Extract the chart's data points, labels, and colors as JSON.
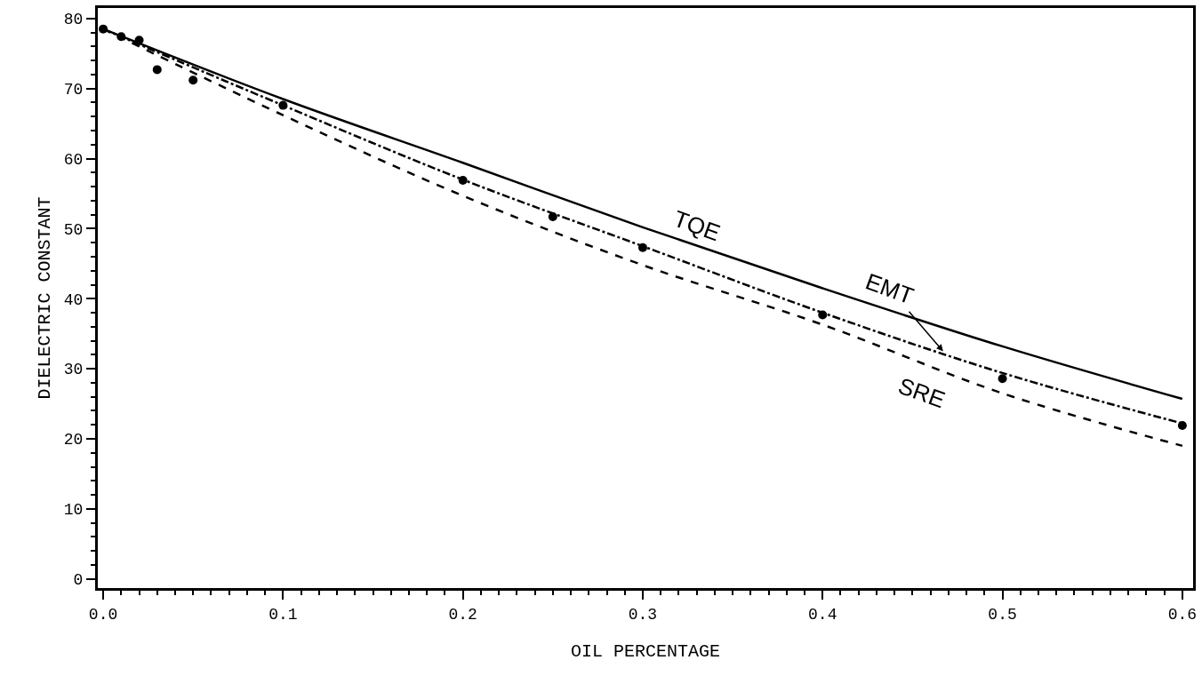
{
  "chart_data": {
    "type": "line",
    "xlabel": "OIL PERCENTAGE",
    "ylabel": "DIELECTRIC CONSTANT",
    "xlim": [
      -0.003,
      0.606
    ],
    "ylim": [
      -1.3,
      81.5
    ],
    "xticks": [
      {
        "value": 0,
        "label": "0.0"
      },
      0.1,
      0.2,
      0.3,
      0.4,
      0.5,
      0.6
    ],
    "yticks": [
      0,
      10,
      20,
      30,
      40,
      50,
      60,
      70,
      80
    ],
    "series": [
      {
        "color": "#000000",
        "line_style": "solid",
        "marker": "none",
        "x": [
          0,
          0.1,
          0.2,
          0.3,
          0.4,
          0.5,
          0.6
        ],
        "values": [
          78.5,
          68.5,
          59.4,
          50.2,
          41.5,
          33.2,
          25.7
        ]
      },
      {
        "color": "#000000",
        "line_style": "dashdot",
        "marker": "none",
        "x": [
          0,
          0.1,
          0.2,
          0.3,
          0.4,
          0.5,
          0.6
        ],
        "values": [
          78.5,
          67.6,
          57.0,
          47.5,
          38.0,
          29.4,
          22.2
        ]
      },
      {
        "color": "#000000",
        "line_style": "dashed",
        "marker": "none",
        "x": [
          0,
          0.1,
          0.2,
          0.3,
          0.4,
          0.5,
          0.6
        ],
        "values": [
          78.5,
          66.2,
          54.7,
          44.8,
          36.3,
          26.5,
          19.0
        ]
      },
      {
        "type": "scatter",
        "color": "#000000",
        "marker": "circle",
        "x": [
          0,
          0.01,
          0.02,
          0.03,
          0.05,
          0.1,
          0.2,
          0.25,
          0.3,
          0.4,
          0.5,
          0.6
        ],
        "values": [
          78.5,
          77.4,
          76.9,
          72.7,
          71.2,
          67.6,
          56.9,
          51.7,
          47.3,
          37.7,
          28.6,
          21.9
        ]
      }
    ],
    "annotations": [
      {
        "text": "TQE",
        "x": 0.33,
        "y": 47.6
      },
      {
        "text": "EMT",
        "x": 0.467,
        "y": 32.5
      },
      {
        "text": "SRE",
        "x": 0.45,
        "y": 31.4
      }
    ]
  }
}
